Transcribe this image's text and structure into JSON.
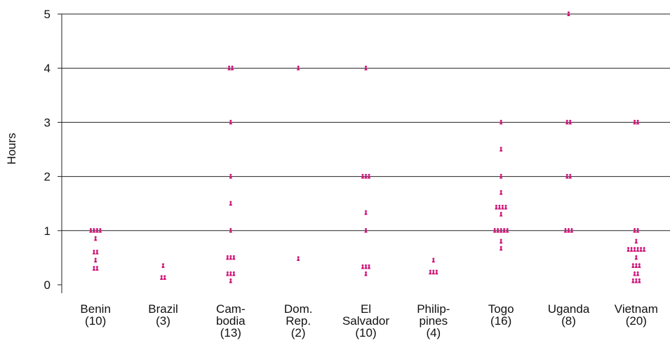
{
  "chart_data": {
    "type": "scatter",
    "ylabel": "Hours",
    "xlabel": "",
    "ylim": [
      0,
      5
    ],
    "yticks": [
      0,
      1,
      2,
      3,
      4,
      5
    ],
    "grid": "horizontal",
    "marker_color": "#d0157a",
    "categories": [
      {
        "lines": [
          "Benin",
          "(10)"
        ],
        "values": [
          1,
          1,
          1,
          1,
          0.85,
          0.6,
          0.6,
          0.45,
          0.3,
          0.3
        ]
      },
      {
        "lines": [
          "Brazil",
          "(3)"
        ],
        "values": [
          0.35,
          0.13,
          0.13
        ]
      },
      {
        "lines": [
          "Cam-",
          "bodia",
          "(13)"
        ],
        "values": [
          4,
          4,
          3,
          2,
          1.5,
          1,
          0.5,
          0.5,
          0.5,
          0.2,
          0.2,
          0.2,
          0.07
        ]
      },
      {
        "lines": [
          "Dom.",
          "Rep.",
          "(2)"
        ],
        "values": [
          4,
          0.48
        ]
      },
      {
        "lines": [
          "El",
          "Salvador",
          "(10)"
        ],
        "values": [
          4,
          2,
          2,
          2,
          1.33,
          1,
          0.33,
          0.33,
          0.33,
          0.2
        ]
      },
      {
        "lines": [
          "Philip-",
          "pines",
          "(4)"
        ],
        "values": [
          0.45,
          0.23,
          0.23,
          0.23
        ]
      },
      {
        "lines": [
          "Togo",
          "(16)"
        ],
        "values": [
          3,
          2.5,
          2,
          1.7,
          1.43,
          1.43,
          1.43,
          1.43,
          1.3,
          1,
          1,
          1,
          1,
          1,
          0.8,
          0.67
        ]
      },
      {
        "lines": [
          "Uganda",
          "(8)"
        ],
        "values": [
          5,
          3,
          3,
          2,
          2,
          1,
          1,
          1
        ]
      },
      {
        "lines": [
          "Vietnam",
          "(20)"
        ],
        "values": [
          3,
          3,
          1,
          1,
          0.8,
          0.65,
          0.65,
          0.65,
          0.65,
          0.65,
          0.65,
          0.5,
          0.35,
          0.35,
          0.35,
          0.2,
          0.2,
          0.07,
          0.07,
          0.07
        ]
      }
    ]
  }
}
